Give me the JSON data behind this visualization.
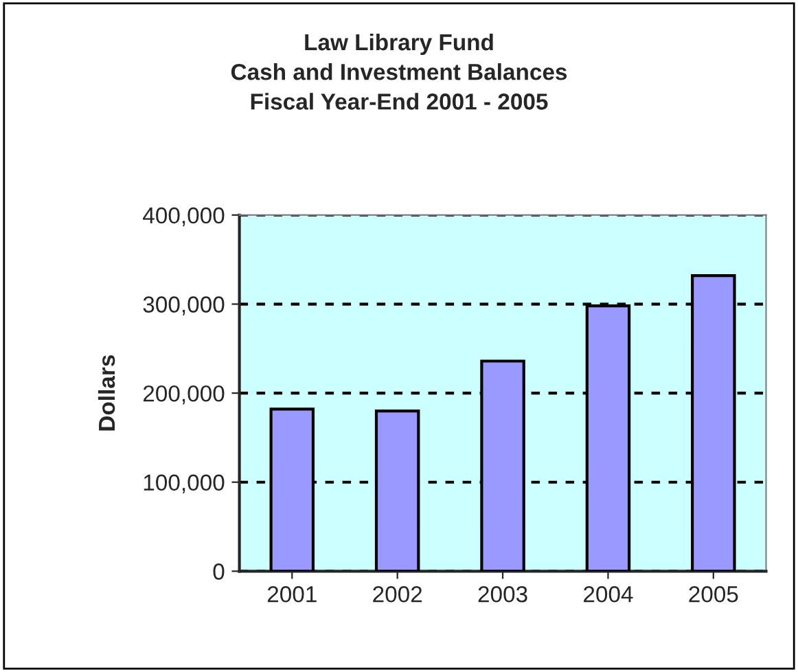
{
  "chart_data": {
    "type": "bar",
    "title": "Law Library Fund\nCash and Investment Balances\nFiscal Year-End 2001 - 2005",
    "ylabel": "Dollars",
    "categories": [
      "2001",
      "2002",
      "2003",
      "2004",
      "2005"
    ],
    "values": [
      182000,
      180000,
      236000,
      298000,
      332000
    ],
    "color": "#9999ff",
    "ylim": [
      0,
      400000
    ],
    "yticks": [
      {
        "value": 0,
        "label": "0"
      },
      {
        "value": 100000,
        "label": "100,000"
      },
      {
        "value": 200000,
        "label": "200,000"
      },
      {
        "value": 300000,
        "label": "300,000"
      },
      {
        "value": 400000,
        "label": "400,000"
      }
    ],
    "grid": "y",
    "line_style": "dotted"
  }
}
